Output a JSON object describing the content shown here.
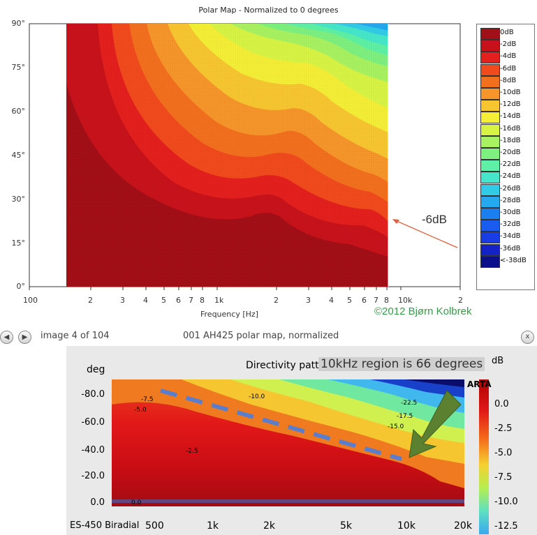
{
  "top_chart": {
    "title": "Polar Map - Normalized to 0 degrees",
    "xlabel": "Frequency [Hz]",
    "y_ticks": [
      "90°",
      "75°",
      "60°",
      "45°",
      "30°",
      "15°",
      "0°"
    ],
    "x_ticks": [
      "100",
      "2",
      "3",
      "4",
      "5",
      "6",
      "7",
      "8",
      "1k",
      "2",
      "3",
      "4",
      "5",
      "6",
      "7",
      "8",
      "10k",
      "2"
    ],
    "annotation": "-6dB",
    "copyright": "©2012 Bjørn Kolbrek",
    "legend": [
      {
        "label": "0dB",
        "color": "#a30f16"
      },
      {
        "label": "-2dB",
        "color": "#c8121b"
      },
      {
        "label": "-4dB",
        "color": "#e3201d"
      },
      {
        "label": "-6dB",
        "color": "#f04a1d"
      },
      {
        "label": "-8dB",
        "color": "#f26f1e"
      },
      {
        "label": "-10dB",
        "color": "#f6952a"
      },
      {
        "label": "-12dB",
        "color": "#f7c530"
      },
      {
        "label": "-14dB",
        "color": "#f4ef36"
      },
      {
        "label": "-16dB",
        "color": "#d7f445"
      },
      {
        "label": "-18dB",
        "color": "#a8f261"
      },
      {
        "label": "-20dB",
        "color": "#7df07f"
      },
      {
        "label": "-22dB",
        "color": "#5ef0a4"
      },
      {
        "label": "-24dB",
        "color": "#45e6c9"
      },
      {
        "label": "-26dB",
        "color": "#32cbe6"
      },
      {
        "label": "-28dB",
        "color": "#24a8f0"
      },
      {
        "label": "-30dB",
        "color": "#1a80f2"
      },
      {
        "label": "-32dB",
        "color": "#1a5cf0"
      },
      {
        "label": "-34dB",
        "color": "#1a3ce6"
      },
      {
        "label": "-36dB",
        "color": "#1422c8"
      },
      {
        "label": "<-38dB",
        "color": "#0c0f8a"
      }
    ]
  },
  "viewer": {
    "counter": "image 4 of 104",
    "caption": "001 AH425 polar map, normalized",
    "prev_icon": "arrow-left-icon",
    "next_icon": "arrow-right-icon",
    "close_icon": "close-icon",
    "prev_glyph": "◀",
    "next_glyph": "▶",
    "close_glyph": "x"
  },
  "bottom_chart": {
    "deg_label": "deg",
    "title": "Directivity pattern",
    "note": "10kHz region is 66 degrees",
    "y_ticks": [
      "-80.0",
      "-60.0",
      "-40.0",
      "-20.0",
      "0.0"
    ],
    "x_ticks": [
      "500",
      "1k",
      "2k",
      "5k",
      "10k",
      "20k"
    ],
    "colorbar_unit": "dB",
    "colorbar_ticks": [
      "0.0",
      "-2.5",
      "-5.0",
      "-7.5",
      "-10.0",
      "-12.5"
    ],
    "arta": "ARTA",
    "model": "ES-450 Biradial",
    "contour_labels": [
      "-7.5",
      "-5.0",
      "-10.0",
      "-2.5",
      "-22.5",
      "-17.5",
      "-15.0",
      "0.0"
    ]
  }
}
